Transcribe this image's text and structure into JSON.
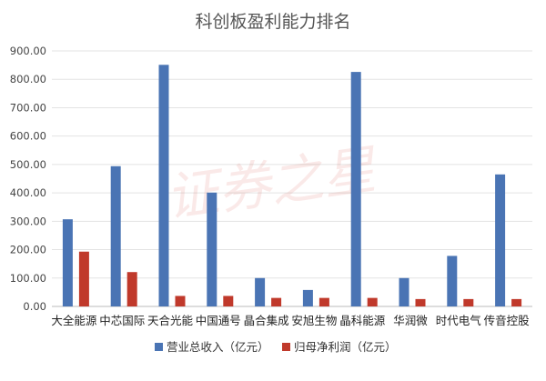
{
  "chart_data": {
    "type": "bar",
    "title": "科创板盈利能力排名",
    "categories": [
      "大全能源",
      "中芯国际",
      "天合光能",
      "中国通号",
      "晶合集成",
      "安旭生物",
      "晶科能源",
      "华润微",
      "时代电气",
      "传音控股"
    ],
    "series": [
      {
        "name": "营业总收入（亿元）",
        "color": "#4a74b4",
        "values": [
          307,
          494,
          851,
          401,
          100,
          58,
          826,
          100,
          178,
          465
        ]
      },
      {
        "name": "归母净利润（亿元）",
        "color": "#c0392b",
        "values": [
          193,
          121,
          37,
          37,
          30,
          30,
          30,
          26,
          26,
          26
        ]
      }
    ],
    "ylim": [
      0,
      900
    ],
    "yticks": [
      "0.00",
      "100.00",
      "200.00",
      "300.00",
      "400.00",
      "500.00",
      "600.00",
      "700.00",
      "800.00",
      "900.00"
    ],
    "grid": true,
    "legend": "bottom",
    "watermark": "证券之星"
  }
}
